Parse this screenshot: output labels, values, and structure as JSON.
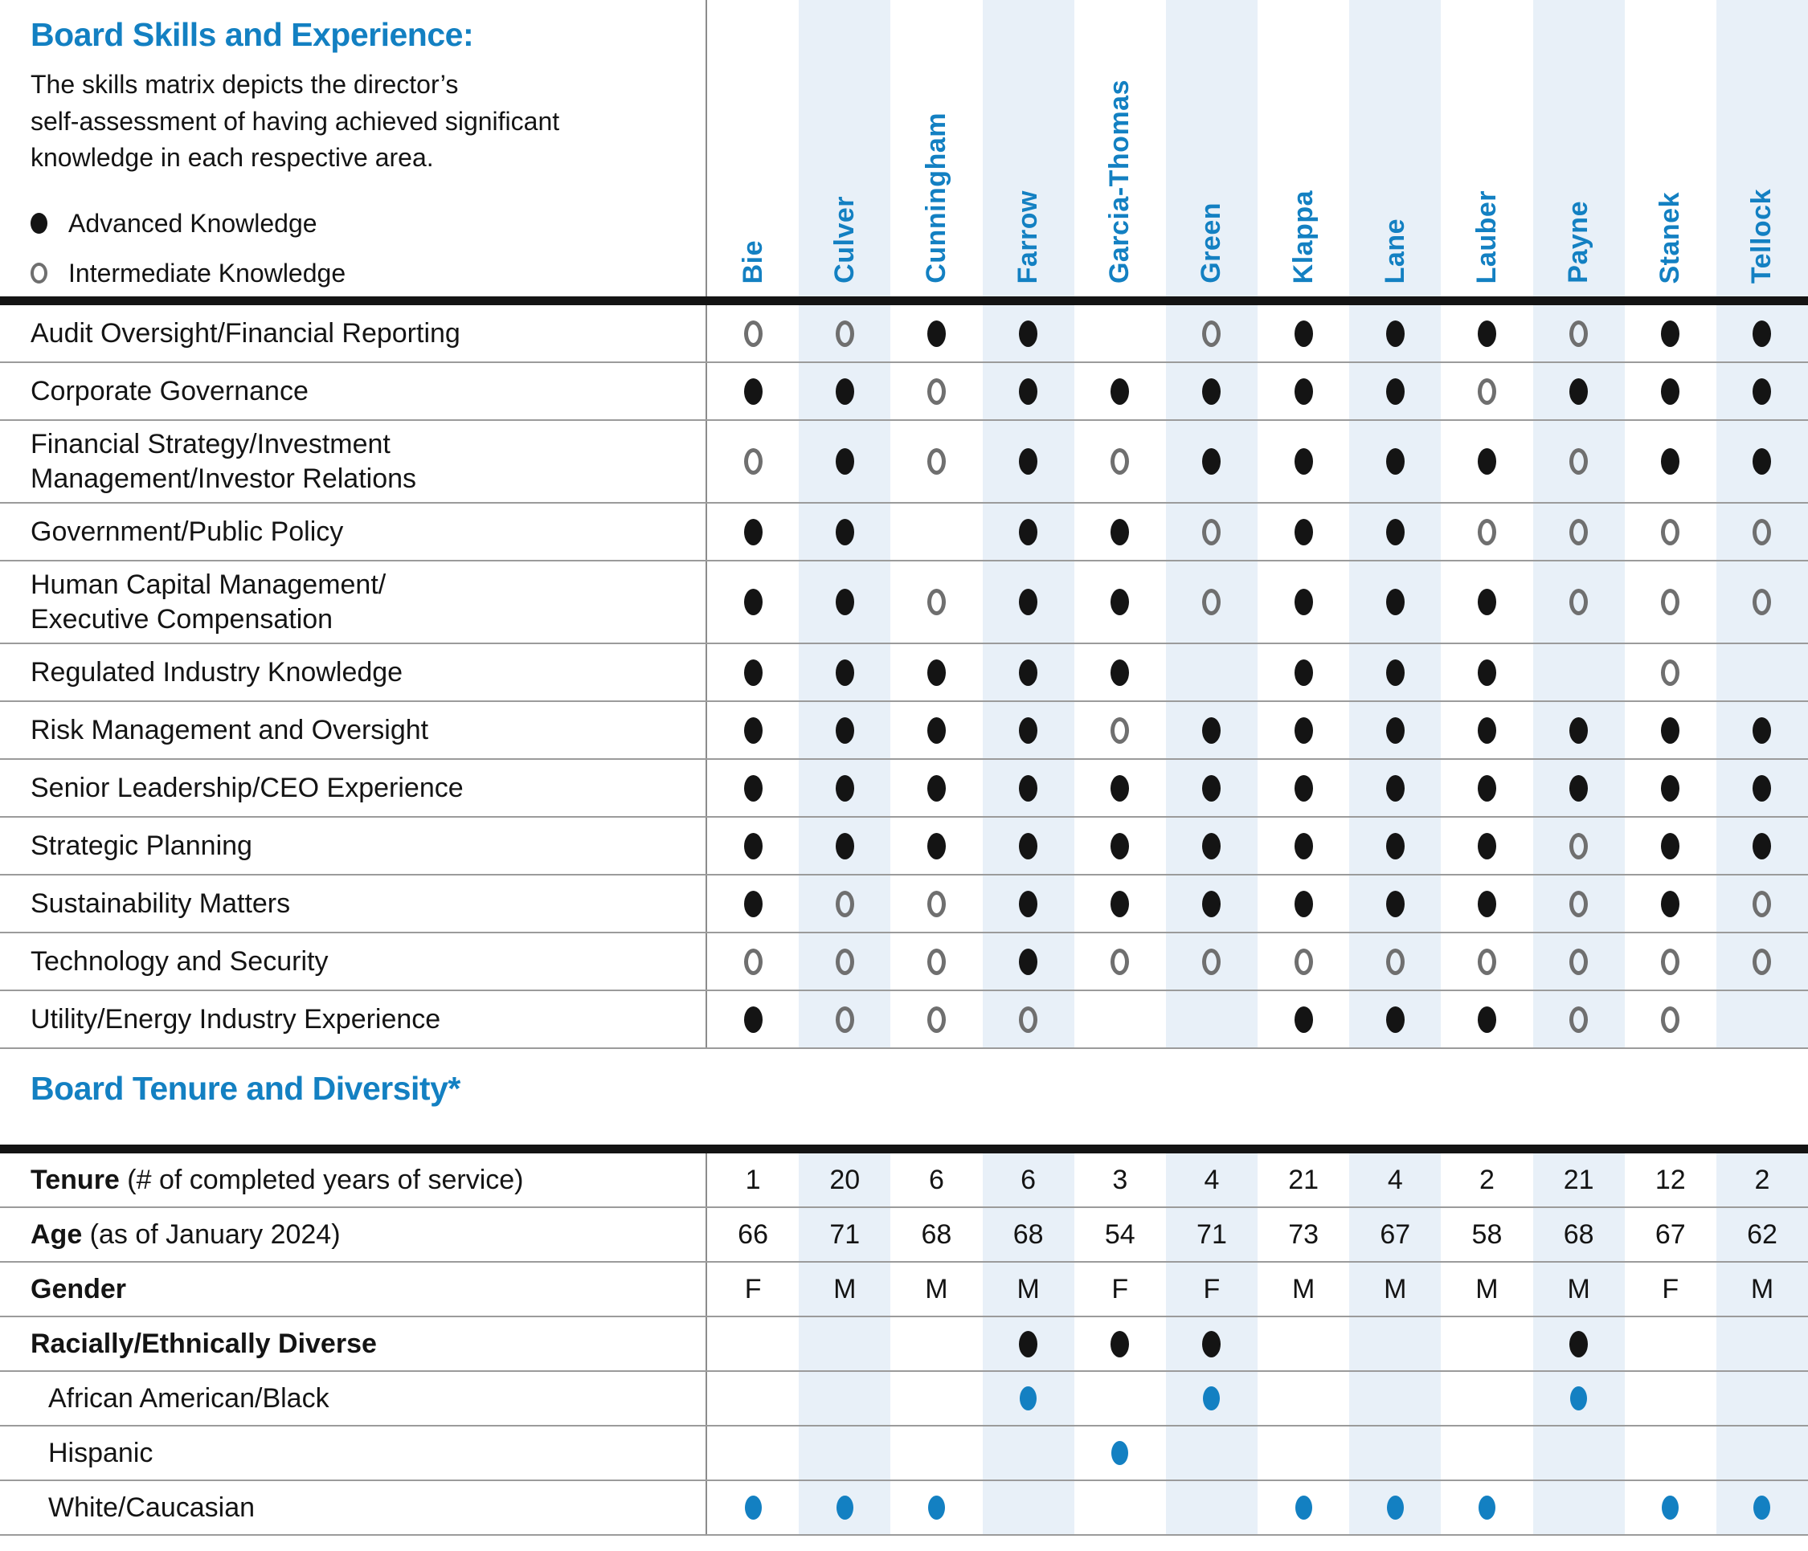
{
  "skills_section": {
    "title": "Board Skills and Experience:",
    "description_lines": [
      "The skills matrix depicts the director’s",
      "self-assessment of having achieved significant",
      "knowledge in each respective area."
    ],
    "legend": [
      {
        "icon": "advanced-filled-dot",
        "label": "Advanced Knowledge"
      },
      {
        "icon": "intermediate-open-circle",
        "label": "Intermediate Knowledge"
      }
    ],
    "directors": [
      "Bie",
      "Culver",
      "Cunningham",
      "Farrow",
      "Garcia-Thomas",
      "Green",
      "Klappa",
      "Lane",
      "Lauber",
      "Payne",
      "Stanek",
      "Tellock"
    ],
    "value_key": {
      "A": "Advanced Knowledge (filled dot)",
      "I": "Intermediate Knowledge (open circle)",
      "": "none"
    },
    "rows": [
      {
        "label_lines": [
          "Audit Oversight/Financial Reporting"
        ],
        "values": [
          "I",
          "I",
          "A",
          "A",
          "",
          "I",
          "A",
          "A",
          "A",
          "I",
          "A",
          "A"
        ]
      },
      {
        "label_lines": [
          "Corporate Governance"
        ],
        "values": [
          "A",
          "A",
          "I",
          "A",
          "A",
          "A",
          "A",
          "A",
          "I",
          "A",
          "A",
          "A"
        ]
      },
      {
        "label_lines": [
          "Financial Strategy/Investment",
          "Management/Investor Relations"
        ],
        "values": [
          "I",
          "A",
          "I",
          "A",
          "I",
          "A",
          "A",
          "A",
          "A",
          "I",
          "A",
          "A"
        ]
      },
      {
        "label_lines": [
          "Government/Public Policy"
        ],
        "values": [
          "A",
          "A",
          "",
          "A",
          "A",
          "I",
          "A",
          "A",
          "I",
          "I",
          "I",
          "I"
        ]
      },
      {
        "label_lines": [
          "Human Capital Management/",
          "Executive Compensation"
        ],
        "values": [
          "A",
          "A",
          "I",
          "A",
          "A",
          "I",
          "A",
          "A",
          "A",
          "I",
          "I",
          "I"
        ]
      },
      {
        "label_lines": [
          "Regulated Industry Knowledge"
        ],
        "values": [
          "A",
          "A",
          "A",
          "A",
          "A",
          "",
          "A",
          "A",
          "A",
          "",
          "I",
          ""
        ]
      },
      {
        "label_lines": [
          "Risk Management and Oversight"
        ],
        "values": [
          "A",
          "A",
          "A",
          "A",
          "I",
          "A",
          "A",
          "A",
          "A",
          "A",
          "A",
          "A"
        ]
      },
      {
        "label_lines": [
          "Senior Leadership/CEO Experience"
        ],
        "values": [
          "A",
          "A",
          "A",
          "A",
          "A",
          "A",
          "A",
          "A",
          "A",
          "A",
          "A",
          "A"
        ]
      },
      {
        "label_lines": [
          "Strategic Planning"
        ],
        "values": [
          "A",
          "A",
          "A",
          "A",
          "A",
          "A",
          "A",
          "A",
          "A",
          "I",
          "A",
          "A"
        ]
      },
      {
        "label_lines": [
          "Sustainability Matters"
        ],
        "values": [
          "A",
          "I",
          "I",
          "A",
          "A",
          "A",
          "A",
          "A",
          "A",
          "I",
          "A",
          "I"
        ]
      },
      {
        "label_lines": [
          "Technology and Security"
        ],
        "values": [
          "I",
          "I",
          "I",
          "A",
          "I",
          "I",
          "I",
          "I",
          "I",
          "I",
          "I",
          "I"
        ]
      },
      {
        "label_lines": [
          "Utility/Energy Industry Experience"
        ],
        "values": [
          "A",
          "I",
          "I",
          "I",
          "",
          "",
          "A",
          "A",
          "A",
          "I",
          "I",
          ""
        ]
      }
    ]
  },
  "tenure_section": {
    "title": "Board Tenure and Diversity*",
    "rows": [
      {
        "label_bold": "Tenure",
        "label_rest": " (# of completed years of service)",
        "type": "text",
        "values": [
          "1",
          "20",
          "6",
          "6",
          "3",
          "4",
          "21",
          "4",
          "2",
          "21",
          "12",
          "2"
        ]
      },
      {
        "label_bold": "Age",
        "label_rest": " (as of January 2024)",
        "type": "text",
        "values": [
          "66",
          "71",
          "68",
          "68",
          "54",
          "71",
          "73",
          "67",
          "58",
          "68",
          "67",
          "62"
        ]
      },
      {
        "label_bold": "Gender",
        "label_rest": "",
        "type": "text",
        "values": [
          "F",
          "M",
          "M",
          "M",
          "F",
          "F",
          "M",
          "M",
          "M",
          "M",
          "F",
          "M"
        ]
      },
      {
        "label_bold": "Racially/Ethnically Diverse",
        "label_rest": "",
        "type": "dot-black",
        "values": [
          0,
          0,
          0,
          1,
          1,
          1,
          0,
          0,
          0,
          1,
          0,
          0
        ]
      },
      {
        "label_plain": "African American/Black",
        "indent": true,
        "type": "dot-blue",
        "values": [
          0,
          0,
          0,
          1,
          0,
          1,
          0,
          0,
          0,
          1,
          0,
          0
        ]
      },
      {
        "label_plain": "Hispanic",
        "indent": true,
        "type": "dot-blue",
        "values": [
          0,
          0,
          0,
          0,
          1,
          0,
          0,
          0,
          0,
          0,
          0,
          0
        ]
      },
      {
        "label_plain": "White/Caucasian",
        "indent": true,
        "type": "dot-blue",
        "values": [
          1,
          1,
          1,
          0,
          0,
          0,
          1,
          1,
          1,
          0,
          1,
          1
        ]
      }
    ]
  },
  "colors": {
    "accent_blue": "#1380c2",
    "column_stripe": "#e8f0f8",
    "dot_black": "#141414",
    "open_circle_gray": "#6f6f6f",
    "separator_gray": "#9b9b9b"
  }
}
